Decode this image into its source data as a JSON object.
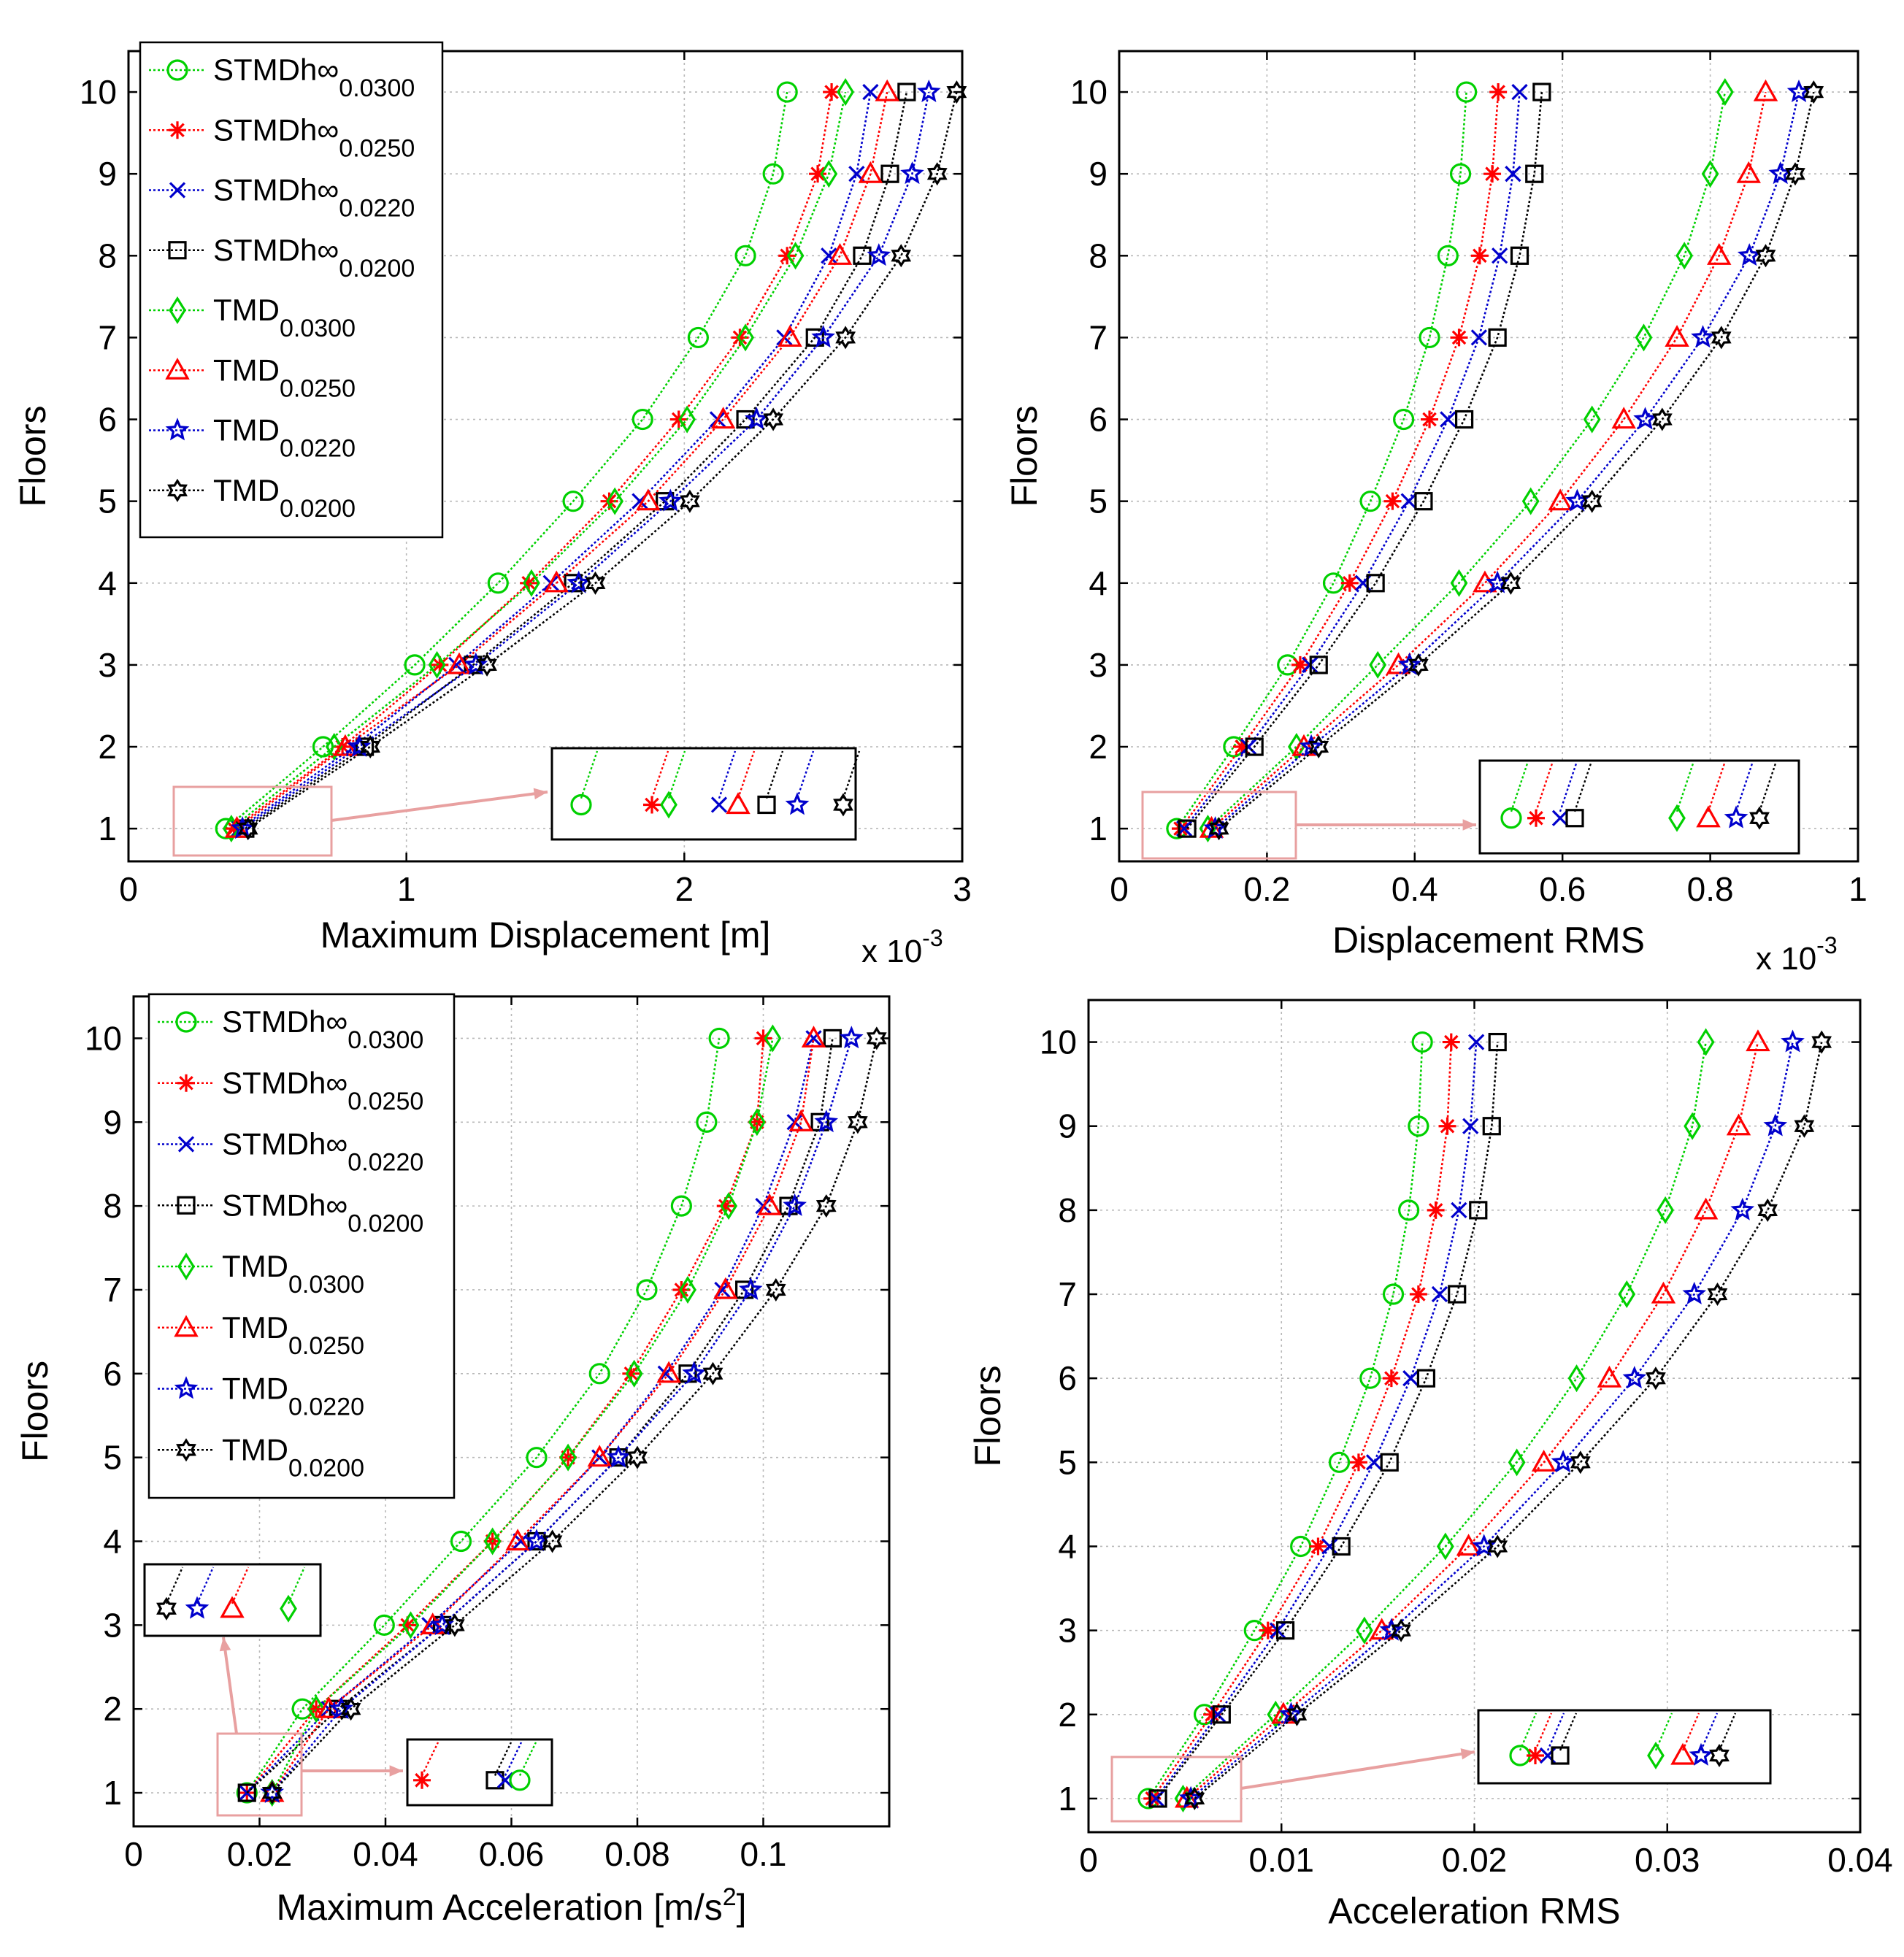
{
  "figure": {
    "styles": {
      "STMDh0300": {
        "color": "#00d000",
        "marker": "circle"
      },
      "STMDh0250": {
        "color": "#ff0000",
        "marker": "asterisk"
      },
      "STMDh0220": {
        "color": "#0000cc",
        "marker": "x"
      },
      "STMDh0200": {
        "color": "#000000",
        "marker": "square"
      },
      "TMD0300": {
        "color": "#00d000",
        "marker": "diamond"
      },
      "TMD0250": {
        "color": "#ff0000",
        "marker": "triangle"
      },
      "TMD0220": {
        "color": "#0000cc",
        "marker": "star"
      },
      "TMD0200": {
        "color": "#000000",
        "marker": "hexagram"
      }
    },
    "callout_color": "#e8a0a0"
  },
  "chart_data": [
    {
      "type": "line",
      "xlabel": "Maximum Displacement [m]",
      "xexp": "x 10",
      "xexp_power": "-3",
      "ylabel": "Floors",
      "xlim": [
        0,
        3
      ],
      "ylim": [
        0.6,
        10.5
      ],
      "xticks": [
        "0",
        "1",
        "2",
        "3"
      ],
      "yticks": [
        "1",
        "2",
        "3",
        "4",
        "5",
        "6",
        "7",
        "8",
        "9",
        "10"
      ],
      "grid": true,
      "legend_position": "top-left",
      "y": [
        1,
        2,
        3,
        4,
        5,
        6,
        7,
        8,
        9,
        10
      ],
      "series": [
        {
          "name": "STMDh∞",
          "sub": "0.0300",
          "style": "STMDh0300",
          "x": [
            0.35,
            0.7,
            1.03,
            1.33,
            1.6,
            1.85,
            2.05,
            2.22,
            2.32,
            2.37
          ]
        },
        {
          "name": "STMDh∞",
          "sub": "0.0250",
          "style": "STMDh0250",
          "x": [
            0.38,
            0.77,
            1.12,
            1.44,
            1.73,
            1.98,
            2.2,
            2.37,
            2.48,
            2.53
          ]
        },
        {
          "name": "STMDh∞",
          "sub": "0.0220",
          "style": "STMDh0220",
          "x": [
            0.4,
            0.81,
            1.18,
            1.52,
            1.84,
            2.12,
            2.36,
            2.52,
            2.62,
            2.67
          ]
        },
        {
          "name": "STMDh∞",
          "sub": "0.0200",
          "style": "STMDh0200",
          "x": [
            0.42,
            0.85,
            1.24,
            1.6,
            1.93,
            2.22,
            2.47,
            2.64,
            2.74,
            2.8
          ]
        },
        {
          "name": "TMD",
          "sub": "0.0300",
          "style": "TMD0300",
          "x": [
            0.37,
            0.74,
            1.11,
            1.45,
            1.75,
            2.01,
            2.22,
            2.4,
            2.52,
            2.58
          ]
        },
        {
          "name": "TMD",
          "sub": "0.0250",
          "style": "TMD0250",
          "x": [
            0.39,
            0.78,
            1.19,
            1.54,
            1.87,
            2.14,
            2.38,
            2.56,
            2.67,
            2.73
          ]
        },
        {
          "name": "TMD",
          "sub": "0.0220",
          "style": "TMD0220",
          "x": [
            0.41,
            0.83,
            1.25,
            1.62,
            1.95,
            2.26,
            2.5,
            2.7,
            2.82,
            2.88
          ]
        },
        {
          "name": "TMD",
          "sub": "0.0200",
          "style": "TMD0200",
          "x": [
            0.43,
            0.87,
            1.29,
            1.68,
            2.02,
            2.32,
            2.58,
            2.78,
            2.91,
            2.98
          ]
        }
      ]
    },
    {
      "type": "line",
      "xlabel": "Displacement RMS",
      "xexp": "x 10",
      "xexp_power": "-3",
      "ylabel": "Floors",
      "xlim": [
        0,
        1
      ],
      "ylim": [
        0.6,
        10.5
      ],
      "xticks": [
        "0",
        "0.2",
        "0.4",
        "0.6",
        "0.8",
        "1"
      ],
      "yticks": [
        "1",
        "2",
        "3",
        "4",
        "5",
        "6",
        "7",
        "8",
        "9",
        "10"
      ],
      "grid": true,
      "y": [
        1,
        2,
        3,
        4,
        5,
        6,
        7,
        8,
        9,
        10
      ],
      "series": [
        {
          "name": "STMDh∞",
          "sub": "0.0300",
          "style": "STMDh0300",
          "x": [
            0.078,
            0.155,
            0.228,
            0.29,
            0.34,
            0.385,
            0.42,
            0.445,
            0.462,
            0.47
          ]
        },
        {
          "name": "STMDh∞",
          "sub": "0.0250",
          "style": "STMDh0250",
          "x": [
            0.083,
            0.166,
            0.245,
            0.312,
            0.37,
            0.42,
            0.46,
            0.488,
            0.505,
            0.513
          ]
        },
        {
          "name": "STMDh∞",
          "sub": "0.0220",
          "style": "STMDh0220",
          "x": [
            0.088,
            0.175,
            0.258,
            0.33,
            0.392,
            0.445,
            0.487,
            0.515,
            0.533,
            0.542
          ]
        },
        {
          "name": "STMDh∞",
          "sub": "0.0200",
          "style": "STMDh0200",
          "x": [
            0.092,
            0.183,
            0.27,
            0.347,
            0.412,
            0.467,
            0.512,
            0.542,
            0.562,
            0.572
          ]
        },
        {
          "name": "TMD",
          "sub": "0.0300",
          "style": "TMD0300",
          "x": [
            0.12,
            0.24,
            0.35,
            0.46,
            0.557,
            0.64,
            0.71,
            0.765,
            0.8,
            0.82
          ]
        },
        {
          "name": "TMD",
          "sub": "0.0250",
          "style": "TMD0250",
          "x": [
            0.125,
            0.25,
            0.378,
            0.495,
            0.597,
            0.683,
            0.755,
            0.812,
            0.852,
            0.875
          ]
        },
        {
          "name": "TMD",
          "sub": "0.0220",
          "style": "TMD0220",
          "x": [
            0.13,
            0.26,
            0.393,
            0.512,
            0.62,
            0.712,
            0.79,
            0.853,
            0.895,
            0.92
          ]
        },
        {
          "name": "TMD",
          "sub": "0.0200",
          "style": "TMD0200",
          "x": [
            0.135,
            0.27,
            0.405,
            0.53,
            0.64,
            0.735,
            0.815,
            0.875,
            0.915,
            0.94
          ]
        }
      ]
    },
    {
      "type": "line",
      "xlabel": "Maximum Acceleration [m/s",
      "xlabel_sup": "2",
      "xlabel_end": "]",
      "ylabel": "Floors",
      "xlim": [
        0,
        0.12
      ],
      "ylim": [
        0.6,
        10.5
      ],
      "xticks": [
        "0",
        "0.02",
        "0.04",
        "0.06",
        "0.08",
        "0.1"
      ],
      "xtick_values": [
        0,
        0.02,
        0.04,
        0.06,
        0.08,
        0.1
      ],
      "yticks": [
        "1",
        "2",
        "3",
        "4",
        "5",
        "6",
        "7",
        "8",
        "9",
        "10"
      ],
      "grid": true,
      "legend_position": "top-left",
      "y": [
        1,
        2,
        3,
        4,
        5,
        6,
        7,
        8,
        9,
        10
      ],
      "series": [
        {
          "name": "STMDh∞",
          "sub": "0.0300",
          "style": "STMDh0300",
          "x": [
            0.018,
            0.0268,
            0.0398,
            0.052,
            0.064,
            0.074,
            0.0815,
            0.087,
            0.091,
            0.093
          ]
        },
        {
          "name": "STMDh∞",
          "sub": "0.0250",
          "style": "STMDh0250",
          "x": [
            0.018,
            0.029,
            0.0435,
            0.057,
            0.069,
            0.079,
            0.087,
            0.094,
            0.099,
            0.1
          ]
        },
        {
          "name": "STMDh∞",
          "sub": "0.0220",
          "style": "STMDh0220",
          "x": [
            0.018,
            0.031,
            0.047,
            0.0615,
            0.074,
            0.0845,
            0.0935,
            0.1,
            0.105,
            0.108
          ]
        },
        {
          "name": "STMDh∞",
          "sub": "0.0200",
          "style": "STMDh0200",
          "x": [
            0.018,
            0.0325,
            0.049,
            0.064,
            0.077,
            0.088,
            0.097,
            0.104,
            0.109,
            0.111
          ]
        },
        {
          "name": "TMD",
          "sub": "0.0300",
          "style": "TMD0300",
          "x": [
            0.022,
            0.029,
            0.044,
            0.057,
            0.069,
            0.0795,
            0.088,
            0.0945,
            0.099,
            0.1015
          ]
        },
        {
          "name": "TMD",
          "sub": "0.0250",
          "style": "TMD0250",
          "x": [
            0.022,
            0.031,
            0.0475,
            0.061,
            0.074,
            0.085,
            0.094,
            0.101,
            0.106,
            0.108
          ]
        },
        {
          "name": "TMD",
          "sub": "0.0220",
          "style": "TMD0220",
          "x": [
            0.022,
            0.033,
            0.049,
            0.064,
            0.077,
            0.089,
            0.098,
            0.105,
            0.11,
            0.114
          ]
        },
        {
          "name": "TMD",
          "sub": "0.0200",
          "style": "TMD0200",
          "x": [
            0.022,
            0.0345,
            0.051,
            0.0665,
            0.08,
            0.092,
            0.102,
            0.11,
            0.115,
            0.118
          ]
        }
      ]
    },
    {
      "type": "line",
      "xlabel": "Acceleration RMS",
      "ylabel": "Floors",
      "xlim": [
        0,
        0.04
      ],
      "ylim": [
        0.6,
        10.5
      ],
      "xticks": [
        "0",
        "0.01",
        "0.02",
        "0.03",
        "0.04"
      ],
      "yticks": [
        "1",
        "2",
        "3",
        "4",
        "5",
        "6",
        "7",
        "8",
        "9",
        "10"
      ],
      "grid": true,
      "y": [
        1,
        2,
        3,
        4,
        5,
        6,
        7,
        8,
        9,
        10
      ],
      "series": [
        {
          "name": "STMDh∞",
          "sub": "0.0300",
          "style": "STMDh0300",
          "x": [
            0.0031,
            0.006,
            0.0086,
            0.011,
            0.013,
            0.0146,
            0.0158,
            0.0166,
            0.0171,
            0.0173
          ]
        },
        {
          "name": "STMDh∞",
          "sub": "0.0250",
          "style": "STMDh0250",
          "x": [
            0.0033,
            0.0064,
            0.0093,
            0.0119,
            0.014,
            0.0157,
            0.0171,
            0.018,
            0.0186,
            0.0188
          ]
        },
        {
          "name": "STMDh∞",
          "sub": "0.0220",
          "style": "STMDh0220",
          "x": [
            0.0035,
            0.0067,
            0.0098,
            0.0125,
            0.0148,
            0.0167,
            0.0182,
            0.0192,
            0.0198,
            0.0201
          ]
        },
        {
          "name": "STMDh∞",
          "sub": "0.0200",
          "style": "STMDh0200",
          "x": [
            0.0036,
            0.0069,
            0.0102,
            0.0131,
            0.0156,
            0.0175,
            0.0191,
            0.0202,
            0.0209,
            0.0212
          ]
        },
        {
          "name": "TMD",
          "sub": "0.0300",
          "style": "TMD0300",
          "x": [
            0.0049,
            0.0097,
            0.0143,
            0.0185,
            0.0222,
            0.0253,
            0.0279,
            0.0299,
            0.0313,
            0.032
          ]
        },
        {
          "name": "TMD",
          "sub": "0.0250",
          "style": "TMD0250",
          "x": [
            0.0051,
            0.0101,
            0.0152,
            0.0197,
            0.0236,
            0.027,
            0.0298,
            0.032,
            0.0337,
            0.0347
          ]
        },
        {
          "name": "TMD",
          "sub": "0.0220",
          "style": "TMD0220",
          "x": [
            0.0053,
            0.0105,
            0.0157,
            0.0205,
            0.0246,
            0.0283,
            0.0314,
            0.0339,
            0.0356,
            0.0365
          ]
        },
        {
          "name": "TMD",
          "sub": "0.0200",
          "style": "TMD0200",
          "x": [
            0.0055,
            0.0108,
            0.0162,
            0.0212,
            0.0255,
            0.0294,
            0.0326,
            0.0352,
            0.0371,
            0.038
          ]
        }
      ]
    }
  ]
}
